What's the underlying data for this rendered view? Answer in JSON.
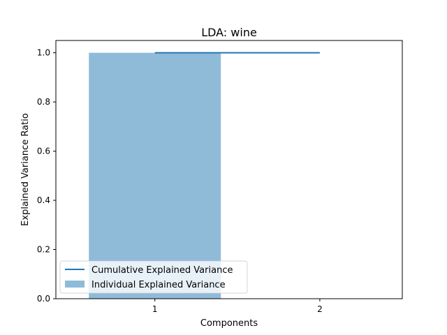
{
  "chart_data": {
    "type": "bar",
    "title": "LDA: wine",
    "xlabel": "Components",
    "ylabel": "Explained Variance Ratio",
    "categories": [
      "1",
      "2"
    ],
    "xlim": [
      0.4,
      2.5
    ],
    "ylim": [
      0.0,
      1.05
    ],
    "yticks": [
      "0.0",
      "0.2",
      "0.4",
      "0.6",
      "0.8",
      "1.0"
    ],
    "series": [
      {
        "name": "Individual Explained Variance",
        "kind": "bar",
        "x": [
          1
        ],
        "values": [
          1.0
        ],
        "color": "#1f77b4",
        "alpha": 0.5
      },
      {
        "name": "Cumulative Explained Variance",
        "kind": "line",
        "x": [
          1,
          2
        ],
        "values": [
          1.0,
          1.0
        ],
        "color": "#1f77b4"
      }
    ],
    "legend": {
      "placement": "bottom-left"
    },
    "grid": false
  }
}
